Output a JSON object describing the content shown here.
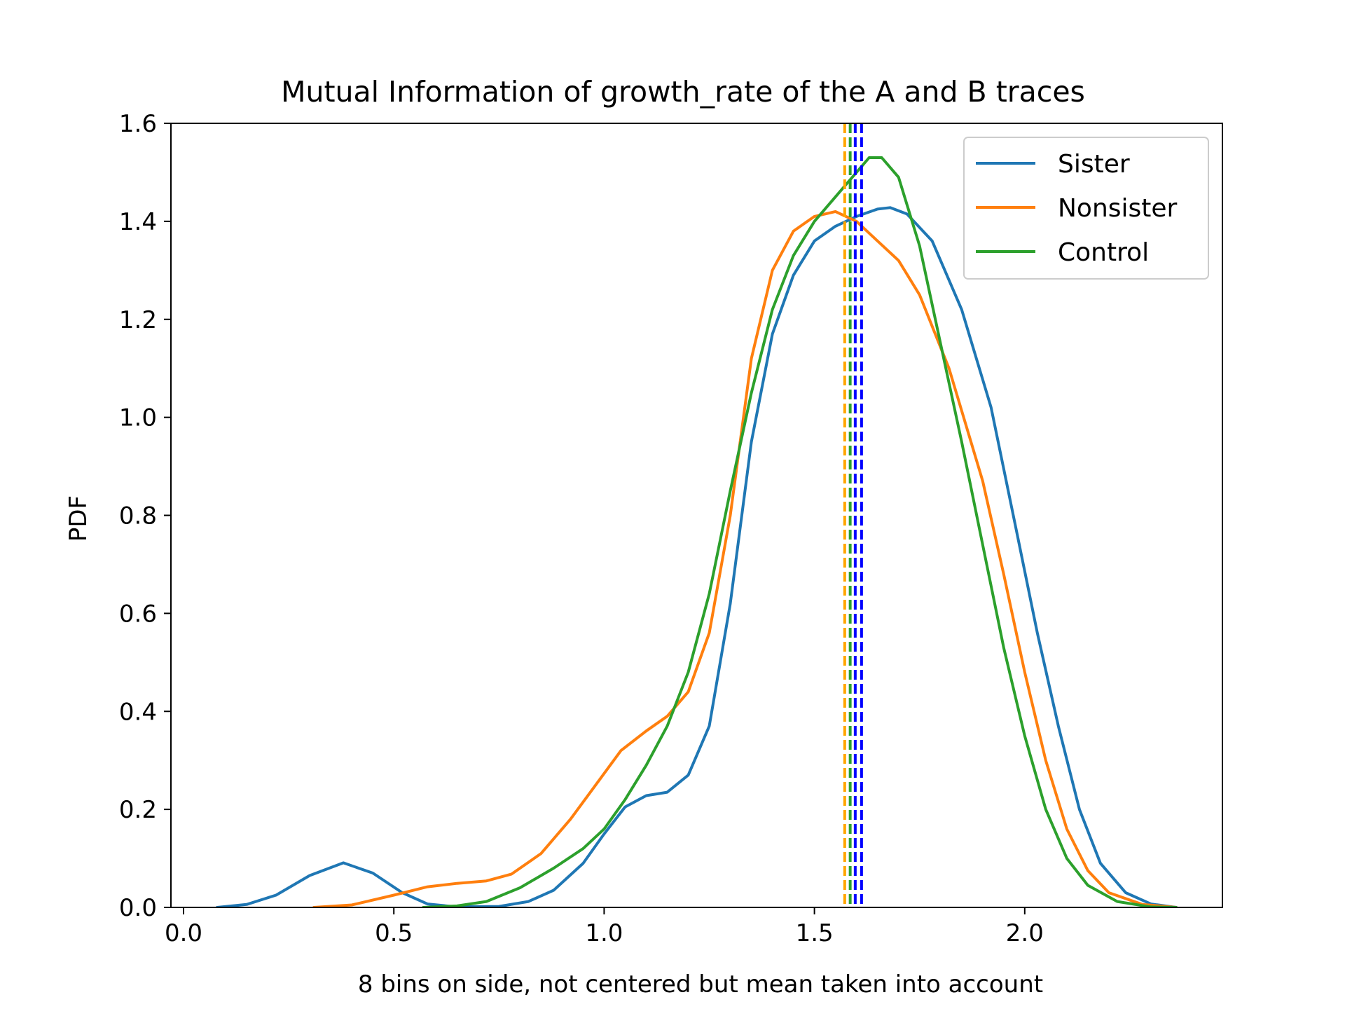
{
  "chart_data": {
    "type": "line",
    "title": "Mutual Information of growth_rate of the A and B traces",
    "xlabel": "8 bins on side, not centered but mean taken into account",
    "ylabel": "PDF",
    "xlim": [
      -0.03,
      2.47
    ],
    "ylim": [
      0.0,
      1.6
    ],
    "xticks": [
      0.0,
      0.5,
      1.0,
      1.5,
      2.0
    ],
    "xtick_labels": [
      "0.0",
      "0.5",
      "1.0",
      "1.5",
      "2.0"
    ],
    "yticks": [
      0.0,
      0.2,
      0.4,
      0.6,
      0.8,
      1.0,
      1.2,
      1.4,
      1.6
    ],
    "ytick_labels": [
      "0.0",
      "0.2",
      "0.4",
      "0.6",
      "0.8",
      "1.0",
      "1.2",
      "1.4",
      "1.6"
    ],
    "grid": false,
    "legend_position": "top-right",
    "series": [
      {
        "name": "Sister",
        "color": "#1f77b4",
        "points": [
          [
            0.08,
            0.0
          ],
          [
            0.15,
            0.006
          ],
          [
            0.22,
            0.025
          ],
          [
            0.3,
            0.065
          ],
          [
            0.38,
            0.091
          ],
          [
            0.45,
            0.07
          ],
          [
            0.52,
            0.03
          ],
          [
            0.58,
            0.007
          ],
          [
            0.65,
            0.001
          ],
          [
            0.75,
            0.002
          ],
          [
            0.82,
            0.012
          ],
          [
            0.88,
            0.035
          ],
          [
            0.95,
            0.09
          ],
          [
            1.0,
            0.15
          ],
          [
            1.05,
            0.205
          ],
          [
            1.1,
            0.228
          ],
          [
            1.15,
            0.235
          ],
          [
            1.2,
            0.27
          ],
          [
            1.25,
            0.37
          ],
          [
            1.3,
            0.62
          ],
          [
            1.35,
            0.95
          ],
          [
            1.4,
            1.17
          ],
          [
            1.45,
            1.29
          ],
          [
            1.5,
            1.36
          ],
          [
            1.55,
            1.39
          ],
          [
            1.6,
            1.41
          ],
          [
            1.65,
            1.425
          ],
          [
            1.68,
            1.428
          ],
          [
            1.72,
            1.415
          ],
          [
            1.78,
            1.36
          ],
          [
            1.85,
            1.22
          ],
          [
            1.92,
            1.02
          ],
          [
            1.98,
            0.77
          ],
          [
            2.03,
            0.56
          ],
          [
            2.08,
            0.37
          ],
          [
            2.13,
            0.2
          ],
          [
            2.18,
            0.09
          ],
          [
            2.24,
            0.03
          ],
          [
            2.3,
            0.007
          ],
          [
            2.36,
            0.0
          ]
        ]
      },
      {
        "name": "Nonsister",
        "color": "#ff7f0e",
        "points": [
          [
            0.31,
            0.0
          ],
          [
            0.4,
            0.005
          ],
          [
            0.5,
            0.025
          ],
          [
            0.58,
            0.042
          ],
          [
            0.65,
            0.049
          ],
          [
            0.72,
            0.054
          ],
          [
            0.78,
            0.068
          ],
          [
            0.85,
            0.11
          ],
          [
            0.92,
            0.18
          ],
          [
            0.98,
            0.25
          ],
          [
            1.04,
            0.32
          ],
          [
            1.1,
            0.36
          ],
          [
            1.15,
            0.39
          ],
          [
            1.2,
            0.44
          ],
          [
            1.25,
            0.56
          ],
          [
            1.3,
            0.8
          ],
          [
            1.35,
            1.12
          ],
          [
            1.4,
            1.3
          ],
          [
            1.45,
            1.38
          ],
          [
            1.5,
            1.41
          ],
          [
            1.55,
            1.42
          ],
          [
            1.6,
            1.4
          ],
          [
            1.65,
            1.36
          ],
          [
            1.7,
            1.32
          ],
          [
            1.75,
            1.25
          ],
          [
            1.82,
            1.1
          ],
          [
            1.9,
            0.87
          ],
          [
            1.95,
            0.68
          ],
          [
            2.0,
            0.48
          ],
          [
            2.05,
            0.3
          ],
          [
            2.1,
            0.16
          ],
          [
            2.15,
            0.075
          ],
          [
            2.2,
            0.03
          ],
          [
            2.28,
            0.006
          ],
          [
            2.36,
            0.0
          ]
        ]
      },
      {
        "name": "Control",
        "color": "#2ca02c",
        "points": [
          [
            0.57,
            0.0
          ],
          [
            0.65,
            0.003
          ],
          [
            0.72,
            0.012
          ],
          [
            0.8,
            0.04
          ],
          [
            0.88,
            0.08
          ],
          [
            0.95,
            0.12
          ],
          [
            1.0,
            0.16
          ],
          [
            1.05,
            0.22
          ],
          [
            1.1,
            0.29
          ],
          [
            1.15,
            0.37
          ],
          [
            1.2,
            0.48
          ],
          [
            1.25,
            0.64
          ],
          [
            1.3,
            0.85
          ],
          [
            1.35,
            1.05
          ],
          [
            1.4,
            1.22
          ],
          [
            1.45,
            1.33
          ],
          [
            1.5,
            1.4
          ],
          [
            1.55,
            1.45
          ],
          [
            1.6,
            1.5
          ],
          [
            1.63,
            1.53
          ],
          [
            1.66,
            1.53
          ],
          [
            1.7,
            1.49
          ],
          [
            1.75,
            1.35
          ],
          [
            1.8,
            1.15
          ],
          [
            1.85,
            0.95
          ],
          [
            1.9,
            0.74
          ],
          [
            1.95,
            0.53
          ],
          [
            2.0,
            0.35
          ],
          [
            2.05,
            0.2
          ],
          [
            2.1,
            0.1
          ],
          [
            2.15,
            0.045
          ],
          [
            2.22,
            0.012
          ],
          [
            2.3,
            0.001
          ],
          [
            2.36,
            0.0
          ]
        ]
      }
    ],
    "vertical_lines": [
      {
        "x": 1.572,
        "color": "#ffa500",
        "style": "dashed"
      },
      {
        "x": 1.585,
        "color": "#2ca02c",
        "style": "dashed"
      },
      {
        "x": 1.597,
        "color": "#0000ff",
        "style": "dashed"
      },
      {
        "x": 1.612,
        "color": "#0000ff",
        "style": "dashed"
      }
    ]
  }
}
